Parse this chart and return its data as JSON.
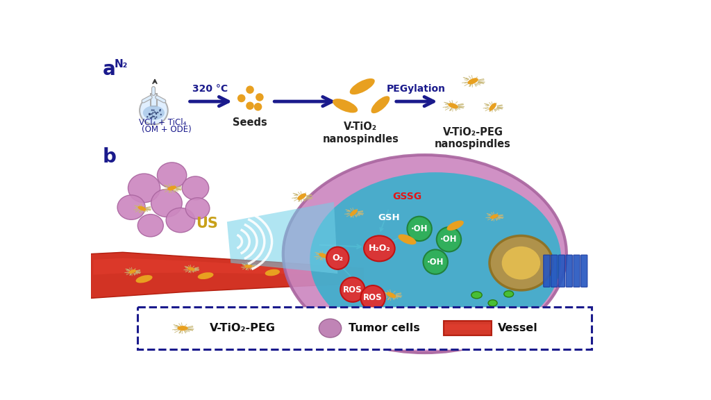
{
  "title": "",
  "background_color": "#ffffff",
  "label_a": "a",
  "label_b": "b",
  "label_a_color": "#1a1a8c",
  "label_b_color": "#1a1a8c",
  "arrow_color": "#1a1a8c",
  "step1_label": "320 °C",
  "step2_label": "PEGylation",
  "seeds_label": "Seeds",
  "vtio2_label": "V-TiO₂\nnanospindles",
  "vtio2peg_label": "V-TiO₂-PEG\nnanospindles",
  "us_label": "US",
  "flask_text1": "VCl₄ + TiCl₄",
  "flask_text2": "(OM + ODE)",
  "flask_n2": "N₂",
  "legend_box_color": "#1a1a8c",
  "legend_label1": "V-TiO₂-PEG",
  "legend_label2": "Tumor cells",
  "legend_label3": "Vessel",
  "gold_color": "#e8a020",
  "gold_dark": "#c87800",
  "pink_cell_color": "#d4a0c8",
  "pink_cell_dark": "#b880a8",
  "teal_cell_color": "#40b8d0",
  "vessel_color": "#e03020",
  "gssg_color": "#e02020",
  "oh_color": "#40c060",
  "h2o2_color": "#e04040",
  "o2_color": "#e03030",
  "ros_color": "#e03030"
}
